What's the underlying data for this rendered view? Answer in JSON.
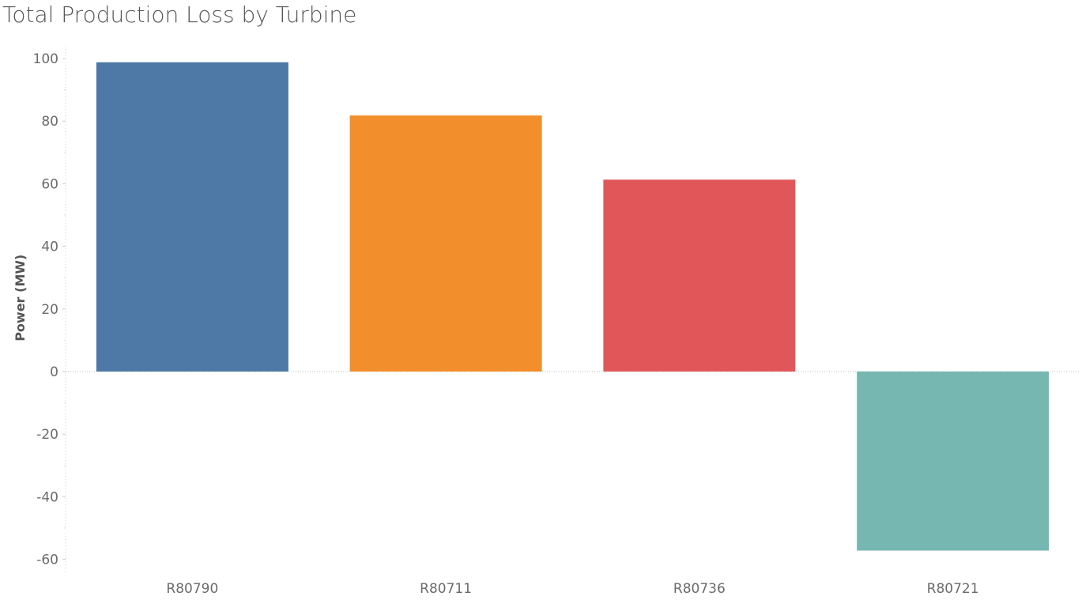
{
  "chart_data": {
    "type": "bar",
    "title": "Total Production Loss by Turbine",
    "xlabel": "",
    "ylabel": "Power (MW)",
    "categories": [
      "R80790",
      "R80711",
      "R80736",
      "R80721"
    ],
    "values": [
      98.8,
      81.8,
      61.3,
      -57.2
    ],
    "colors": [
      "#4e79a7",
      "#f28e2b",
      "#e15759",
      "#76b7b2"
    ],
    "ylim": [
      -64,
      104
    ],
    "yticks": [
      100,
      80,
      60,
      40,
      20,
      0,
      -20,
      -40,
      -60
    ],
    "ytick_labels": [
      "100",
      "80",
      "60",
      "40",
      "20",
      "0",
      "-20",
      "-40",
      "-60"
    ],
    "grid": false,
    "zero_line": true
  }
}
